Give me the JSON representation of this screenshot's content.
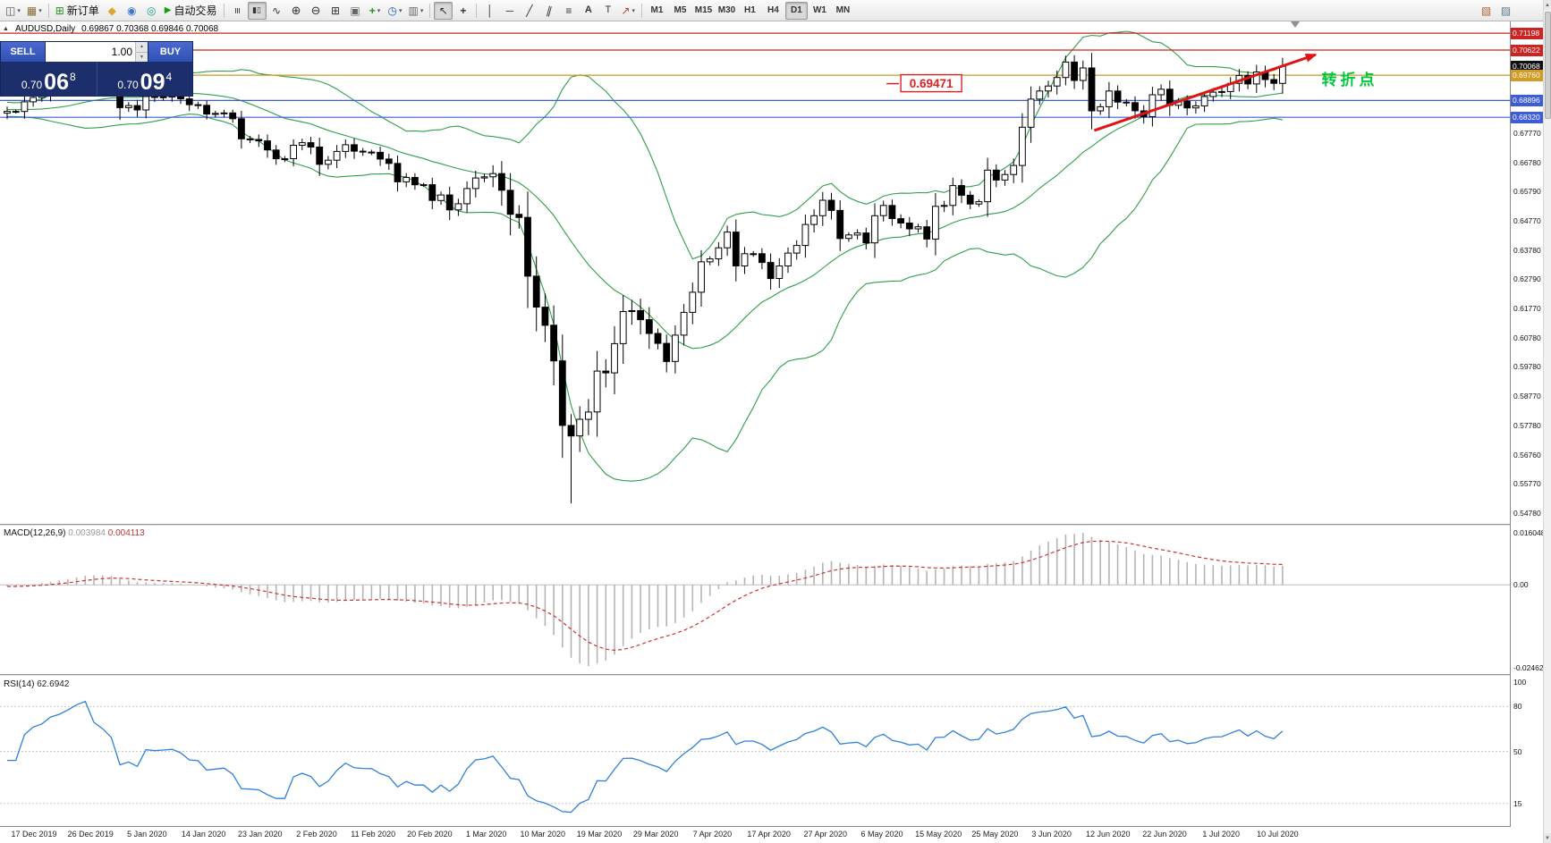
{
  "toolbar": {
    "dd": "▾",
    "new_chart": "◫",
    "profiles": "▦",
    "new_order": {
      "glyph": "⊞",
      "label": "新订单"
    },
    "metaeditor": "◆",
    "terminal": "◉",
    "tester": "◎",
    "autotrading": {
      "glyph": "▶",
      "label": "自动交易"
    },
    "bars": "≡",
    "candles": "▮▯",
    "line_chart": "∿",
    "zoom_in": "⊕",
    "zoom_out": "⊖",
    "tile": "⊞",
    "arrange": "▣",
    "indicators": "+",
    "periods": "◷",
    "templates": "▥",
    "cursor": "↖",
    "crosshair": "+",
    "vline": "│",
    "hline": "─",
    "tline": "╱",
    "channel": "∥",
    "fibo": "≡",
    "text_tool": "A",
    "label_tool": "T",
    "arrows_tool": "↗",
    "timeframes": [
      "M1",
      "M5",
      "M15",
      "M30",
      "H1",
      "H4",
      "D1",
      "W1",
      "MN"
    ],
    "active_timeframe": "D1",
    "right_icons": [
      "▧",
      "▨"
    ],
    "scroll_up": "▲",
    "scroll_down": "▼"
  },
  "chart": {
    "header": {
      "collapse": "▲",
      "title": "AUDUSD,Daily",
      "ohlc": "0.69867 0.70368 0.69846 0.70068"
    },
    "one_click": {
      "sell": "SELL",
      "buy": "BUY",
      "volume": "1.00",
      "spin_up": "▲",
      "spin_down": "▼",
      "sell_price": {
        "small": "0.70",
        "big": "06",
        "sup": "8"
      },
      "buy_price": {
        "small": "0.70",
        "big": "09",
        "sup": "4"
      }
    }
  },
  "chart_data": {
    "type": "candlestick",
    "symbol": "AUDUSD",
    "period": "Daily",
    "price_range": {
      "top": 0.716,
      "bottom": 0.544
    },
    "price_axis_ticks": [
      "0.67770",
      "0.66780",
      "0.65790",
      "0.64770",
      "0.63780",
      "0.62790",
      "0.61770",
      "0.60780",
      "0.59780",
      "0.58770",
      "0.57780",
      "0.56760",
      "0.55770",
      "0.54780"
    ],
    "pinned_prices": [
      {
        "text": "0.71198",
        "bg": "#cc2420"
      },
      {
        "text": "0.70622",
        "bg": "#cc2420"
      },
      {
        "text": "0.70068",
        "bg": "#101010"
      },
      {
        "text": "0.69760",
        "bg": "#d39b22"
      },
      {
        "text": "0.68896",
        "bg": "#3c5cd8"
      },
      {
        "text": "0.68320",
        "bg": "#3c5cd8"
      }
    ],
    "x_axis_dates": [
      "17 Dec 2019",
      "26 Dec 2019",
      "5 Jan 2020",
      "14 Jan 2020",
      "23 Jan 2020",
      "2 Feb 2020",
      "11 Feb 2020",
      "20 Feb 2020",
      "1 Mar 2020",
      "10 Mar 2020",
      "19 Mar 2020",
      "29 Mar 2020",
      "7 Apr 2020",
      "17 Apr 2020",
      "27 Apr 2020",
      "6 May 2020",
      "15 May 2020",
      "25 May 2020",
      "3 Jun 2020",
      "12 Jun 2020",
      "22 Jun 2020",
      "1 Jul 2020",
      "10 Jul 2020"
    ],
    "candles": {
      "lead_in": [
        0.6868,
        0.6872,
        0.6878,
        0.6885,
        0.688,
        0.6872,
        0.6866,
        0.6858,
        0.6852,
        0.6846,
        0.6852,
        0.6858,
        0.685,
        0.6842,
        0.6848,
        0.6855,
        0.6861,
        0.6856,
        0.685,
        0.6846
      ],
      "closes": [
        0.6852,
        0.6852,
        0.6885,
        0.69,
        0.6907,
        0.6925,
        0.6933,
        0.6948,
        0.697,
        0.6988,
        0.696,
        0.695,
        0.6935,
        0.6865,
        0.6872,
        0.6857,
        0.6903,
        0.69,
        0.6902,
        0.6904,
        0.6895,
        0.6875,
        0.6873,
        0.6843,
        0.6845,
        0.6847,
        0.6827,
        0.6758,
        0.6756,
        0.6751,
        0.672,
        0.669,
        0.669,
        0.6736,
        0.6745,
        0.673,
        0.6671,
        0.6685,
        0.6715,
        0.6738,
        0.6716,
        0.6713,
        0.6712,
        0.6689,
        0.6674,
        0.6611,
        0.6626,
        0.6601,
        0.6601,
        0.6547,
        0.6566,
        0.6515,
        0.6536,
        0.6588,
        0.6624,
        0.6628,
        0.6639,
        0.6582,
        0.65,
        0.6489,
        0.6288,
        0.6182,
        0.612,
        0.5998,
        0.5777,
        0.5741,
        0.5798,
        0.5823,
        0.5963,
        0.5957,
        0.6057,
        0.6167,
        0.617,
        0.6139,
        0.6092,
        0.6058,
        0.5996,
        0.6086,
        0.6164,
        0.6233,
        0.6337,
        0.6347,
        0.6385,
        0.6439,
        0.6323,
        0.6365,
        0.6365,
        0.6335,
        0.628,
        0.6323,
        0.6367,
        0.6393,
        0.6465,
        0.6495,
        0.6548,
        0.6513,
        0.6417,
        0.6429,
        0.6436,
        0.6402,
        0.6495,
        0.653,
        0.6485,
        0.647,
        0.645,
        0.6457,
        0.6415,
        0.6527,
        0.653,
        0.6598,
        0.6565,
        0.6535,
        0.6543,
        0.6651,
        0.6617,
        0.6636,
        0.6667,
        0.6798,
        0.6894,
        0.6922,
        0.6939,
        0.6968,
        0.7021,
        0.6958,
        0.7001,
        0.6854,
        0.6868,
        0.6922,
        0.6884,
        0.6882,
        0.6854,
        0.6834,
        0.6909,
        0.6928,
        0.6873,
        0.6887,
        0.6864,
        0.6871,
        0.6903,
        0.6918,
        0.692,
        0.6948,
        0.6975,
        0.6946,
        0.6987,
        0.6961,
        0.6948,
        0.70068
      ],
      "special_lows": {
        "64": 0.5688,
        "65": 0.551
      },
      "special_highs": {
        "122": 0.7042
      }
    },
    "bollinger": {
      "period": 20,
      "deviation": 2,
      "color": "#2f9e4a"
    },
    "annotations": {
      "horizontal_lines": [
        {
          "price": 0.71198,
          "color": "#cc2420"
        },
        {
          "price": 0.70622,
          "color": "#cc2420"
        },
        {
          "price": 0.6976,
          "color": "#c79a20"
        },
        {
          "price": 0.68896,
          "color": "#3c5cd8"
        },
        {
          "price": 0.6832,
          "color": "#3c5cd8"
        }
      ],
      "trendline": {
        "from": {
          "x_index": 125.3,
          "price": 0.6787
        },
        "to": {
          "x_index": 150.8,
          "price": 0.7046
        },
        "color": "#e01414",
        "width": 3
      },
      "callout": {
        "text": "0.69471",
        "x_index": 103,
        "price": 0.69471,
        "color": "#e02020"
      },
      "note": {
        "text": "转折点",
        "x_index": 151.5,
        "price": 0.6942,
        "color": "#00c83c"
      }
    },
    "macd": {
      "label": "MACD(12,26,9)",
      "value1": "0.003984",
      "value2": "0.004113",
      "axis_max_label": "0.016048",
      "axis_zero_label": "0.00",
      "axis_min_label": "-0.024625",
      "vmax": 0.0165,
      "vmin": -0.0252,
      "hist_color": "#b4b4b4",
      "signal_color": "#cc3333"
    },
    "rsi": {
      "label": "RSI(14)",
      "value": "62.6942",
      "levels": [
        80,
        50,
        15
      ],
      "axis_labels": [
        "100",
        "80",
        "50",
        "15"
      ],
      "line_color": "#2f80d9"
    }
  }
}
